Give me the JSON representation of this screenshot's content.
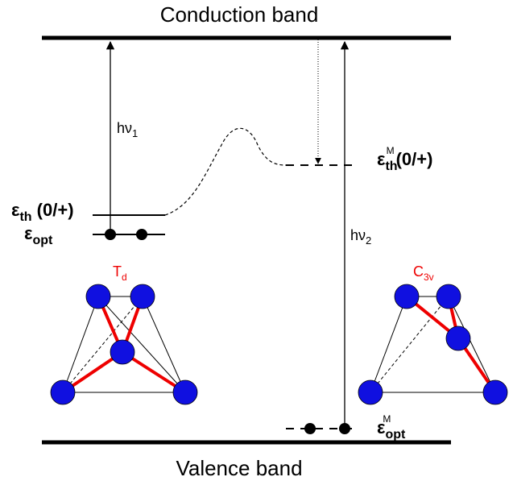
{
  "bands": {
    "conduction": "Conduction band",
    "valence": "Valence band"
  },
  "transitions": [
    {
      "symbol": "hν",
      "sub": "1"
    },
    {
      "symbol": "hν",
      "sub": "2"
    }
  ],
  "levels": {
    "eth": {
      "symbol": "ε",
      "sub": "th",
      "suffix": " (0/+)"
    },
    "eopt": {
      "symbol": "ε",
      "sub": "opt"
    },
    "eth_m": {
      "symbol": "ε",
      "sub": "th",
      "sup": "M",
      "suffix": "(0/+)"
    },
    "eopt_m": {
      "symbol": "ε",
      "sub": "opt",
      "sup": "M"
    }
  },
  "symmetries": [
    {
      "symbol": "T",
      "sub": "d"
    },
    {
      "symbol": "C",
      "sub": "3v"
    }
  ]
}
